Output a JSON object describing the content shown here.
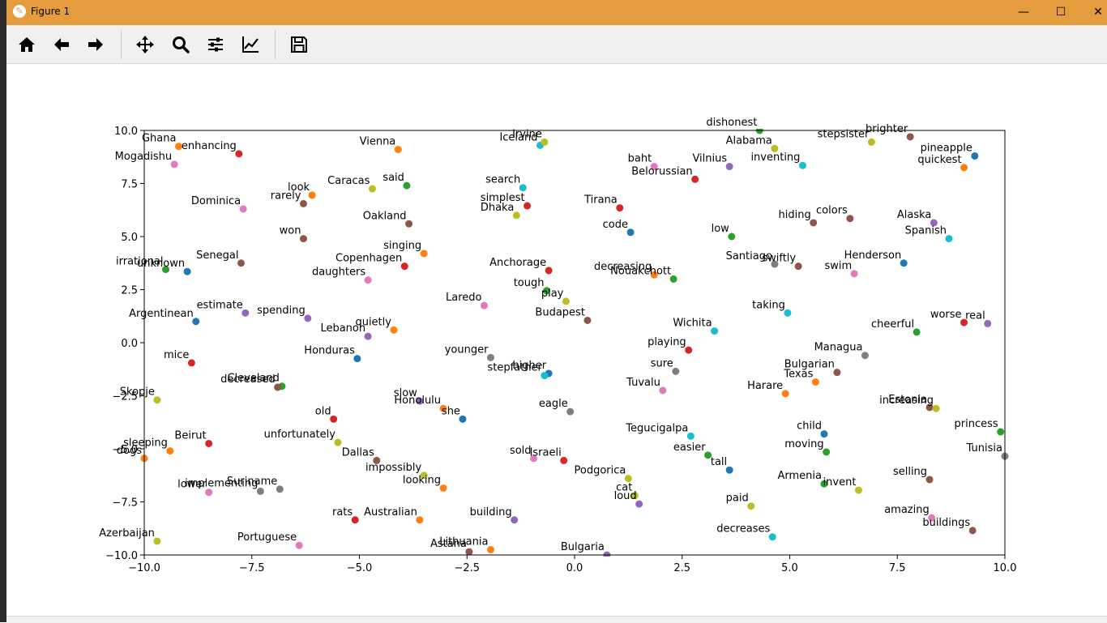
{
  "window": {
    "title": "Figure 1",
    "minimize": "—",
    "maximize": "☐",
    "close": "✕"
  },
  "toolbar": [
    "home-icon",
    "back-arrow-icon",
    "forward-arrow-icon",
    "pan-icon",
    "zoom-icon",
    "configure-subplots-icon",
    "edit-axis-icon",
    "save-icon"
  ],
  "chart_data": {
    "type": "scatter",
    "title": "",
    "xlabel": "",
    "ylabel": "",
    "xlim": [
      -10,
      10
    ],
    "ylim": [
      -10,
      10
    ],
    "xticks": [
      "−10.0",
      "−7.5",
      "−5.0",
      "−2.5",
      "0.0",
      "2.5",
      "5.0",
      "7.5",
      "10.0"
    ],
    "yticks": [
      "−10.0",
      "−7.5",
      "−5.0",
      "−2.5",
      "0.0",
      "2.5",
      "5.0",
      "7.5",
      "10.0"
    ],
    "grid": false,
    "palette": [
      "#1f77b4",
      "#ff7f0e",
      "#2ca02c",
      "#d62728",
      "#9467bd",
      "#8c564b",
      "#e377c2",
      "#7f7f7f",
      "#bcbd22",
      "#17becf"
    ],
    "points": [
      {
        "label": "Ghana",
        "x": -9.2,
        "y": 9.25,
        "c": 1
      },
      {
        "label": "enhancing",
        "x": -7.8,
        "y": 8.9,
        "c": 3
      },
      {
        "label": "Mogadishu",
        "x": -9.3,
        "y": 8.4,
        "c": 6
      },
      {
        "label": "Vienna",
        "x": -4.1,
        "y": 9.1,
        "c": 1
      },
      {
        "label": "Iceland",
        "x": -0.8,
        "y": 9.3,
        "c": 9
      },
      {
        "label": "Irvine",
        "x": -0.7,
        "y": 9.45,
        "c": 8
      },
      {
        "label": "dishonest",
        "x": 4.3,
        "y": 10.0,
        "c": 2
      },
      {
        "label": "Alabama",
        "x": 4.65,
        "y": 9.15,
        "c": 8
      },
      {
        "label": "stepsister",
        "x": 6.9,
        "y": 9.45,
        "c": 8
      },
      {
        "label": "brighter",
        "x": 7.8,
        "y": 9.7,
        "c": 5
      },
      {
        "label": "pineapple",
        "x": 9.3,
        "y": 8.8,
        "c": 0
      },
      {
        "label": "quickest",
        "x": 9.05,
        "y": 8.25,
        "c": 1
      },
      {
        "label": "baht",
        "x": 1.85,
        "y": 8.3,
        "c": 6
      },
      {
        "label": "Vilnius",
        "x": 3.6,
        "y": 8.3,
        "c": 4
      },
      {
        "label": "inventing",
        "x": 5.3,
        "y": 8.35,
        "c": 9
      },
      {
        "label": "Belorussian",
        "x": 2.8,
        "y": 7.7,
        "c": 3
      },
      {
        "label": "Caracas",
        "x": -4.7,
        "y": 7.25,
        "c": 8
      },
      {
        "label": "said",
        "x": -3.9,
        "y": 7.4,
        "c": 2
      },
      {
        "label": "search",
        "x": -1.2,
        "y": 7.3,
        "c": 9
      },
      {
        "label": "look",
        "x": -6.1,
        "y": 6.95,
        "c": 1
      },
      {
        "label": "rarely",
        "x": -6.3,
        "y": 6.55,
        "c": 5
      },
      {
        "label": "Dominica",
        "x": -7.7,
        "y": 6.3,
        "c": 6
      },
      {
        "label": "simplest",
        "x": -1.1,
        "y": 6.45,
        "c": 3
      },
      {
        "label": "Dhaka",
        "x": -1.35,
        "y": 6.0,
        "c": 8
      },
      {
        "label": "Tirana",
        "x": 1.05,
        "y": 6.35,
        "c": 3
      },
      {
        "label": "Oakland",
        "x": -3.85,
        "y": 5.6,
        "c": 5
      },
      {
        "label": "hiding",
        "x": 5.55,
        "y": 5.65,
        "c": 5
      },
      {
        "label": "colors",
        "x": 6.4,
        "y": 5.85,
        "c": 5
      },
      {
        "label": "Alaska",
        "x": 8.35,
        "y": 5.65,
        "c": 4
      },
      {
        "label": "code",
        "x": 1.3,
        "y": 5.2,
        "c": 0
      },
      {
        "label": "Spanish",
        "x": 8.7,
        "y": 4.9,
        "c": 9
      },
      {
        "label": "low",
        "x": 3.65,
        "y": 5.0,
        "c": 2
      },
      {
        "label": "won",
        "x": -6.3,
        "y": 4.9,
        "c": 5
      },
      {
        "label": "singing",
        "x": -3.5,
        "y": 4.2,
        "c": 1
      },
      {
        "label": "Senegal",
        "x": -7.75,
        "y": 3.75,
        "c": 5
      },
      {
        "label": "Henderson",
        "x": 7.65,
        "y": 3.75,
        "c": 0
      },
      {
        "label": "Santiago",
        "x": 4.65,
        "y": 3.7,
        "c": 7
      },
      {
        "label": "swiftly",
        "x": 5.2,
        "y": 3.6,
        "c": 5
      },
      {
        "label": "Copenhagen",
        "x": -3.95,
        "y": 3.6,
        "c": 3
      },
      {
        "label": "irrational",
        "x": -9.5,
        "y": 3.45,
        "c": 2
      },
      {
        "label": "unknown",
        "x": -9.0,
        "y": 3.35,
        "c": 0
      },
      {
        "label": "Anchorage",
        "x": -0.6,
        "y": 3.4,
        "c": 3
      },
      {
        "label": "swim",
        "x": 6.5,
        "y": 3.25,
        "c": 6
      },
      {
        "label": "decreasing",
        "x": 1.85,
        "y": 3.2,
        "c": 1
      },
      {
        "label": "Nouakchott",
        "x": 2.3,
        "y": 3.0,
        "c": 2
      },
      {
        "label": "daughters",
        "x": -4.8,
        "y": 2.95,
        "c": 6
      },
      {
        "label": "tough",
        "x": -0.65,
        "y": 2.45,
        "c": 2
      },
      {
        "label": "play",
        "x": -0.2,
        "y": 1.95,
        "c": 8
      },
      {
        "label": "Laredo",
        "x": -2.1,
        "y": 1.75,
        "c": 6
      },
      {
        "label": "Argentinean",
        "x": -8.8,
        "y": 1.0,
        "c": 0
      },
      {
        "label": "estimate",
        "x": -7.65,
        "y": 1.4,
        "c": 4
      },
      {
        "label": "spending",
        "x": -6.2,
        "y": 1.15,
        "c": 4
      },
      {
        "label": "taking",
        "x": 4.95,
        "y": 1.4,
        "c": 9
      },
      {
        "label": "Budapest",
        "x": 0.3,
        "y": 1.05,
        "c": 5
      },
      {
        "label": "Wichita",
        "x": 3.25,
        "y": 0.55,
        "c": 9
      },
      {
        "label": "quietly",
        "x": -4.2,
        "y": 0.6,
        "c": 1
      },
      {
        "label": "Lebanon",
        "x": -4.8,
        "y": 0.3,
        "c": 4
      },
      {
        "label": "cheerful",
        "x": 7.95,
        "y": 0.5,
        "c": 2
      },
      {
        "label": "worse",
        "x": 9.05,
        "y": 0.95,
        "c": 3
      },
      {
        "label": "real",
        "x": 9.6,
        "y": 0.9,
        "c": 4
      },
      {
        "label": "playing",
        "x": 2.65,
        "y": -0.35,
        "c": 3
      },
      {
        "label": "Honduras",
        "x": -5.05,
        "y": -0.75,
        "c": 0
      },
      {
        "label": "younger",
        "x": -1.95,
        "y": -0.7,
        "c": 7
      },
      {
        "label": "Managua",
        "x": 6.75,
        "y": -0.6,
        "c": 7
      },
      {
        "label": "mice",
        "x": -8.9,
        "y": -0.95,
        "c": 3
      },
      {
        "label": "sure",
        "x": 2.35,
        "y": -1.35,
        "c": 7
      },
      {
        "label": "Bulgarian",
        "x": 6.1,
        "y": -1.4,
        "c": 5
      },
      {
        "label": "higher",
        "x": -0.6,
        "y": -1.45,
        "c": 0
      },
      {
        "label": "stepfather",
        "x": -0.7,
        "y": -1.55,
        "c": 9
      },
      {
        "label": "Texas",
        "x": 5.6,
        "y": -1.85,
        "c": 1
      },
      {
        "label": "Cleveland",
        "x": -6.8,
        "y": -2.05,
        "c": 2
      },
      {
        "label": "decreased",
        "x": -6.9,
        "y": -2.1,
        "c": 5
      },
      {
        "label": "Tuvalu",
        "x": 2.05,
        "y": -2.25,
        "c": 6
      },
      {
        "label": "Harare",
        "x": 4.9,
        "y": -2.4,
        "c": 1
      },
      {
        "label": "Skopje",
        "x": -9.7,
        "y": -2.7,
        "c": 8
      },
      {
        "label": "slow",
        "x": -3.6,
        "y": -2.75,
        "c": 4
      },
      {
        "label": "Honolulu",
        "x": -3.05,
        "y": -3.1,
        "c": 1
      },
      {
        "label": "Estonia",
        "x": 8.25,
        "y": -3.05,
        "c": 5
      },
      {
        "label": "increasing",
        "x": 8.4,
        "y": -3.1,
        "c": 8
      },
      {
        "label": "eagle",
        "x": -0.1,
        "y": -3.25,
        "c": 7
      },
      {
        "label": "she",
        "x": -2.6,
        "y": -3.6,
        "c": 0
      },
      {
        "label": "old",
        "x": -5.6,
        "y": -3.6,
        "c": 3
      },
      {
        "label": "child",
        "x": 5.8,
        "y": -4.3,
        "c": 0
      },
      {
        "label": "princess",
        "x": 9.9,
        "y": -4.2,
        "c": 2
      },
      {
        "label": "Tegucigalpa",
        "x": 2.7,
        "y": -4.4,
        "c": 9
      },
      {
        "label": "unfortunately",
        "x": -5.5,
        "y": -4.7,
        "c": 8
      },
      {
        "label": "Beirut",
        "x": -8.5,
        "y": -4.75,
        "c": 3
      },
      {
        "label": "sleeping",
        "x": -9.4,
        "y": -5.1,
        "c": 1
      },
      {
        "label": "moving",
        "x": 5.85,
        "y": -5.15,
        "c": 2
      },
      {
        "label": "easier",
        "x": 3.1,
        "y": -5.3,
        "c": 2
      },
      {
        "label": "Tunisia",
        "x": 10.0,
        "y": -5.35,
        "c": 7
      },
      {
        "label": "dogs",
        "x": -10.0,
        "y": -5.45,
        "c": 1
      },
      {
        "label": "sold",
        "x": -0.95,
        "y": -5.45,
        "c": 6
      },
      {
        "label": "Israeli",
        "x": -0.25,
        "y": -5.55,
        "c": 3
      },
      {
        "label": "Dallas",
        "x": -4.6,
        "y": -5.55,
        "c": 5
      },
      {
        "label": "tall",
        "x": 3.6,
        "y": -6.0,
        "c": 0
      },
      {
        "label": "impossibly",
        "x": -3.5,
        "y": -6.25,
        "c": 8
      },
      {
        "label": "Podgorica",
        "x": 1.25,
        "y": -6.4,
        "c": 8
      },
      {
        "label": "Armenia",
        "x": 5.8,
        "y": -6.65,
        "c": 2
      },
      {
        "label": "selling",
        "x": 8.25,
        "y": -6.45,
        "c": 5
      },
      {
        "label": "invent",
        "x": 6.6,
        "y": -6.95,
        "c": 8
      },
      {
        "label": "looking",
        "x": -3.05,
        "y": -6.85,
        "c": 1
      },
      {
        "label": "Suriname",
        "x": -6.85,
        "y": -6.9,
        "c": 7
      },
      {
        "label": "implementing",
        "x": -7.3,
        "y": -7.0,
        "c": 7
      },
      {
        "label": "lower",
        "x": -8.5,
        "y": -7.05,
        "c": 6
      },
      {
        "label": "cat",
        "x": 1.4,
        "y": -7.2,
        "c": 8
      },
      {
        "label": "loud",
        "x": 1.5,
        "y": -7.6,
        "c": 4
      },
      {
        "label": "paid",
        "x": 4.1,
        "y": -7.7,
        "c": 8
      },
      {
        "label": "Australian",
        "x": -3.6,
        "y": -8.35,
        "c": 1
      },
      {
        "label": "building",
        "x": -1.4,
        "y": -8.35,
        "c": 4
      },
      {
        "label": "rats",
        "x": -5.1,
        "y": -8.35,
        "c": 3
      },
      {
        "label": "amazing",
        "x": 8.3,
        "y": -8.25,
        "c": 6
      },
      {
        "label": "buildings",
        "x": 9.25,
        "y": -8.85,
        "c": 5
      },
      {
        "label": "Azerbaijan",
        "x": -9.7,
        "y": -9.35,
        "c": 8
      },
      {
        "label": "decreases",
        "x": 4.6,
        "y": -9.15,
        "c": 9
      },
      {
        "label": "Portuguese",
        "x": -6.4,
        "y": -9.55,
        "c": 6
      },
      {
        "label": "Lithuania",
        "x": -1.95,
        "y": -9.75,
        "c": 1
      },
      {
        "label": "Astana",
        "x": -2.45,
        "y": -9.85,
        "c": 5
      },
      {
        "label": "Bulgaria",
        "x": 0.75,
        "y": -10.0,
        "c": 4
      }
    ]
  }
}
